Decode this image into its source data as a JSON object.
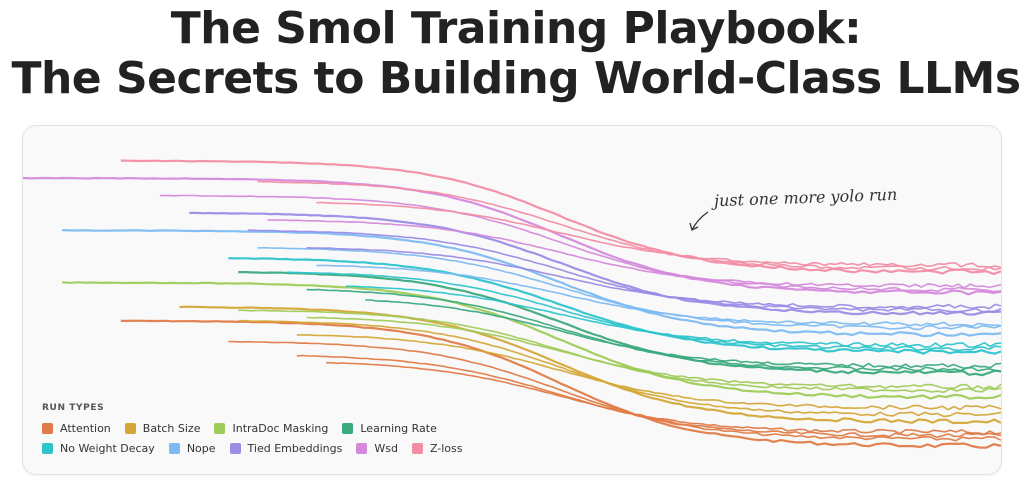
{
  "header": {
    "title_line1": "The Smol Training Playbook:",
    "title_line2": "The Secrets to Building World-Class LLMs"
  },
  "annotation": "just one more yolo run",
  "legend": {
    "title": "RUN TYPES",
    "items": [
      {
        "label": "Attention",
        "color": "#E07B47"
      },
      {
        "label": "Batch Size",
        "color": "#D4A838"
      },
      {
        "label": "IntraDoc Masking",
        "color": "#9FCB5A"
      },
      {
        "label": "Learning Rate",
        "color": "#3BAA7E"
      },
      {
        "label": "No Weight Decay",
        "color": "#2EC4CC"
      },
      {
        "label": "Nope",
        "color": "#7DBAF2"
      },
      {
        "label": "Tied Embeddings",
        "color": "#9A8CE6"
      },
      {
        "label": "Wsd",
        "color": "#D48ADB"
      },
      {
        "label": "Z-loss",
        "color": "#F28DA4"
      }
    ]
  },
  "chart_data": {
    "type": "line",
    "title": "",
    "xlabel": "",
    "ylabel": "",
    "grid": false,
    "legend_position": "bottom-left",
    "series": [
      {
        "name": "Attention",
        "color": "#E07B47",
        "runs": [
          [
            0.1,
            0.56,
            0.92
          ],
          [
            0.21,
            0.62,
            0.9
          ],
          [
            0.28,
            0.66,
            0.89
          ],
          [
            0.31,
            0.68,
            0.88
          ]
        ]
      },
      {
        "name": "Batch Size",
        "color": "#D4A838",
        "runs": [
          [
            0.16,
            0.52,
            0.85
          ],
          [
            0.22,
            0.56,
            0.83
          ],
          [
            0.28,
            0.6,
            0.81
          ]
        ]
      },
      {
        "name": "IntraDoc Masking",
        "color": "#9FCB5A",
        "runs": [
          [
            0.04,
            0.45,
            0.78
          ],
          [
            0.22,
            0.53,
            0.76
          ],
          [
            0.29,
            0.55,
            0.75
          ]
        ]
      },
      {
        "name": "Learning Rate",
        "color": "#3BAA7E",
        "runs": [
          [
            0.22,
            0.42,
            0.71
          ],
          [
            0.29,
            0.47,
            0.7
          ],
          [
            0.35,
            0.5,
            0.69
          ]
        ]
      },
      {
        "name": "No Weight Decay",
        "color": "#2EC4CC",
        "runs": [
          [
            0.21,
            0.38,
            0.65
          ],
          [
            0.27,
            0.42,
            0.64
          ],
          [
            0.33,
            0.46,
            0.63
          ]
        ]
      },
      {
        "name": "Nope",
        "color": "#7DBAF2",
        "runs": [
          [
            0.04,
            0.3,
            0.6
          ],
          [
            0.24,
            0.35,
            0.58
          ],
          [
            0.3,
            0.4,
            0.57
          ]
        ]
      },
      {
        "name": "Tied Embeddings",
        "color": "#9A8CE6",
        "runs": [
          [
            0.17,
            0.25,
            0.54
          ],
          [
            0.23,
            0.3,
            0.53
          ],
          [
            0.29,
            0.35,
            0.52
          ]
        ]
      },
      {
        "name": "Wsd",
        "color": "#D48ADB",
        "runs": [
          [
            0.0,
            0.15,
            0.48
          ],
          [
            0.14,
            0.2,
            0.47
          ],
          [
            0.25,
            0.27,
            0.46
          ]
        ]
      },
      {
        "name": "Z-loss",
        "color": "#F28DA4",
        "runs": [
          [
            0.1,
            0.1,
            0.42
          ],
          [
            0.24,
            0.16,
            0.41
          ],
          [
            0.3,
            0.22,
            0.4
          ]
        ]
      }
    ]
  }
}
